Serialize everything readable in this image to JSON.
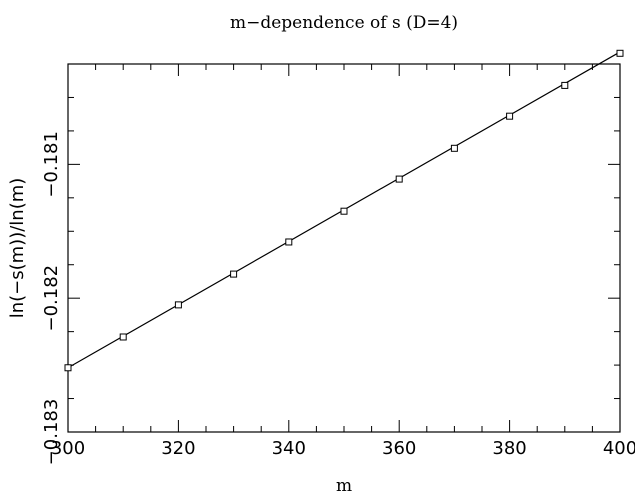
{
  "chart_data": {
    "type": "scatter",
    "title": "m−dependence of s (D=4)",
    "xlabel": "m",
    "ylabel": "ln(−s(m))/ln(m)",
    "xlim": [
      300,
      400
    ],
    "ylim": [
      -0.183,
      -0.18025
    ],
    "xticks": [
      300,
      320,
      340,
      360,
      380,
      400
    ],
    "xtick_labels": [
      "300",
      "320",
      "340",
      "360",
      "380",
      "400"
    ],
    "yticks": [
      -0.183,
      -0.182,
      -0.181
    ],
    "ytick_labels": [
      "−0.183",
      "−0.182",
      "−0.181"
    ],
    "grid": false,
    "legend": "none",
    "series": [
      {
        "marker": "open-square",
        "x": [
          300,
          310,
          320,
          330,
          340,
          350,
          360,
          370,
          380,
          390,
          400
        ],
        "y": [
          -0.18252,
          -0.18229,
          -0.18205,
          -0.18182,
          -0.18158,
          -0.18135,
          -0.18111,
          -0.18088,
          -0.18064,
          -0.18041,
          -0.18017
        ]
      }
    ],
    "fit_line": {
      "style": "solid",
      "x": [
        300,
        400
      ],
      "y": [
        -0.18252,
        -0.18016
      ]
    },
    "colors": {
      "axes": "#000000",
      "background": "#ffffff"
    }
  }
}
